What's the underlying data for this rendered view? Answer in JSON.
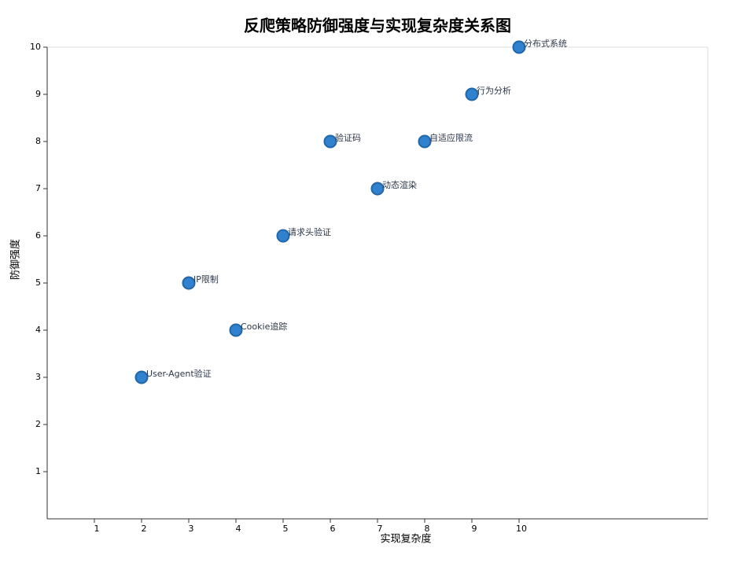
{
  "chart_data": {
    "type": "scatter",
    "title": "反爬策略防御强度与实现复杂度关系图",
    "x_label": "实现复杂度",
    "y_label": "防御强度",
    "x": [
      2,
      3,
      4,
      5,
      6,
      7,
      8,
      9,
      10
    ],
    "values": [
      3,
      5,
      4,
      6,
      8,
      7,
      8,
      9,
      10
    ],
    "labels": [
      "User-Agent验证",
      "IP限制",
      "Cookie追踪",
      "请求头验证",
      "验证码",
      "动态渲染",
      "自适应限流",
      "行为分析",
      "分布式系统"
    ],
    "color": "#3182ce",
    "xlim": [
      0,
      14
    ],
    "ylim": [
      0,
      10
    ],
    "xticks": [
      1,
      2,
      3,
      4,
      5,
      6,
      7,
      8,
      9,
      10
    ],
    "yticks": [
      1,
      2,
      3,
      4,
      5,
      6,
      7,
      8,
      9,
      10
    ]
  }
}
